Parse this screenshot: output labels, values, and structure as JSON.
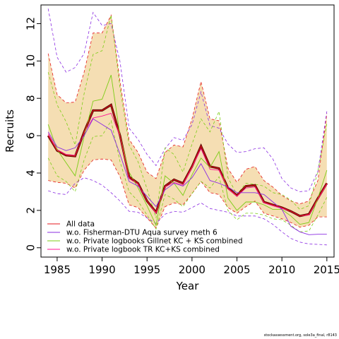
{
  "footer_text": "stockassessment.org, sole3a_final, r8143",
  "chart_data": {
    "type": "line",
    "title": "",
    "xlabel": "Year",
    "ylabel": "Recruits",
    "xlim": [
      1983.2,
      2015.8
    ],
    "ylim": [
      -0.5,
      13
    ],
    "xticks": [
      1985,
      1990,
      1995,
      2000,
      2005,
      2010,
      2015
    ],
    "yticks": [
      0,
      2,
      4,
      6,
      8,
      10,
      12
    ],
    "grid": false,
    "legend_position": "bottom-left",
    "x": [
      1984,
      1985,
      1986,
      1987,
      1988,
      1989,
      1990,
      1991,
      1992,
      1993,
      1994,
      1995,
      1996,
      1997,
      1998,
      1999,
      2000,
      2001,
      2002,
      2003,
      2004,
      2005,
      2006,
      2007,
      2008,
      2009,
      2010,
      2011,
      2012,
      2013,
      2014,
      2015
    ],
    "band": {
      "color": "#f5deb3",
      "lower": [
        3.6,
        3.5,
        3.45,
        3.2,
        4.15,
        4.7,
        4.75,
        4.7,
        3.8,
        2.3,
        2.15,
        1.6,
        1.05,
        2.2,
        2.4,
        2.3,
        2.9,
        3.55,
        2.95,
        2.85,
        2.15,
        1.85,
        2.2,
        2.5,
        1.85,
        1.7,
        1.55,
        1.35,
        1.1,
        1.2,
        1.65,
        1.65
      ],
      "upper": [
        10.4,
        8.2,
        7.75,
        7.8,
        9.4,
        11.5,
        11.5,
        12.45,
        8.9,
        5.8,
        5.1,
        4.05,
        3.7,
        5.1,
        5.5,
        5.4,
        6.9,
        8.9,
        6.9,
        6.8,
        4.25,
        3.5,
        4.2,
        4.35,
        3.6,
        3.25,
        2.8,
        2.5,
        2.35,
        2.5,
        3.6,
        7.2
      ]
    },
    "series": [
      {
        "name": "All data",
        "color": "#e41a1c",
        "values": [
          6.0,
          5.2,
          4.95,
          4.9,
          6.2,
          7.35,
          7.35,
          7.65,
          6.0,
          3.8,
          3.45,
          2.5,
          1.9,
          3.3,
          3.65,
          3.45,
          4.35,
          5.45,
          4.35,
          4.25,
          3.2,
          2.8,
          3.3,
          3.35,
          2.45,
          2.3,
          2.15,
          1.95,
          1.7,
          1.8,
          2.65,
          3.45
        ]
      },
      {
        "name": "w.o. Fisherman-DTU Aqua survey meth 6",
        "color": "#8a2be2",
        "values": [
          6.2,
          5.4,
          5.2,
          5.35,
          6.0,
          6.9,
          6.6,
          6.3,
          5.0,
          3.55,
          3.3,
          2.75,
          2.2,
          3.1,
          3.45,
          3.3,
          3.75,
          4.5,
          3.6,
          3.45,
          3.25,
          2.95,
          2.95,
          2.95,
          2.85,
          2.45,
          2.05,
          1.15,
          0.85,
          0.7,
          0.72,
          0.72
        ],
        "lower": [
          3.05,
          2.9,
          2.85,
          3.45,
          3.75,
          3.6,
          3.35,
          2.95,
          2.5,
          1.95,
          1.9,
          1.6,
          1.3,
          1.8,
          1.95,
          1.9,
          2.15,
          2.4,
          2.1,
          2.0,
          1.9,
          1.7,
          1.7,
          1.7,
          1.55,
          1.25,
          0.85,
          0.5,
          0.3,
          0.2,
          0.18,
          0.15
        ],
        "upper": [
          12.8,
          10.2,
          9.4,
          9.65,
          10.4,
          12.6,
          11.9,
          12.0,
          9.95,
          6.4,
          5.8,
          5.0,
          4.4,
          5.3,
          5.9,
          5.75,
          6.6,
          8.35,
          6.55,
          6.4,
          5.55,
          5.1,
          5.15,
          5.3,
          5.35,
          4.75,
          3.7,
          3.2,
          3.0,
          3.05,
          4.1,
          7.3
        ]
      },
      {
        "name": "w.o. Private logbooks Gillnet KC + KS combined",
        "color": "#7ccd16",
        "values": [
          6.6,
          5.25,
          4.55,
          3.85,
          5.95,
          7.85,
          7.95,
          9.25,
          6.0,
          4.05,
          3.2,
          2.25,
          1.2,
          3.85,
          3.45,
          2.8,
          3.9,
          4.8,
          4.3,
          5.15,
          2.65,
          2.0,
          2.45,
          2.45,
          2.3,
          2.05,
          2.05,
          1.7,
          1.25,
          1.35,
          2.65,
          4.15
        ],
        "lower": [
          4.8,
          3.85,
          3.55,
          3.0,
          4.7,
          5.95,
          6.0,
          6.8,
          4.6,
          3.0,
          2.5,
          1.75,
          1.0,
          2.85,
          2.6,
          2.2,
          2.9,
          3.55,
          3.2,
          3.8,
          2.0,
          1.5,
          1.85,
          1.85,
          1.75,
          1.55,
          1.5,
          1.2,
          0.85,
          0.9,
          1.75,
          2.7
        ],
        "upper": [
          9.4,
          7.65,
          6.75,
          5.5,
          8.25,
          10.35,
          10.55,
          12.45,
          8.55,
          5.5,
          4.6,
          3.15,
          1.6,
          5.35,
          5.0,
          4.05,
          5.55,
          6.9,
          6.2,
          7.3,
          3.75,
          2.85,
          3.45,
          3.4,
          3.3,
          2.95,
          2.85,
          2.55,
          2.05,
          2.25,
          4.1,
          6.65
        ]
      },
      {
        "name": "w.o. Private logbook TR KC+KS combined",
        "color": "#ff1493",
        "values": [
          6.1,
          5.25,
          5.0,
          4.95,
          6.15,
          6.95,
          7.05,
          7.2,
          5.95,
          3.7,
          3.4,
          2.5,
          1.85,
          3.25,
          3.5,
          3.35,
          4.3,
          5.3,
          4.2,
          4.15,
          3.15,
          2.75,
          3.2,
          3.25,
          2.4,
          2.25,
          2.1,
          1.95,
          1.7,
          1.75,
          2.6,
          3.4
        ]
      }
    ]
  }
}
